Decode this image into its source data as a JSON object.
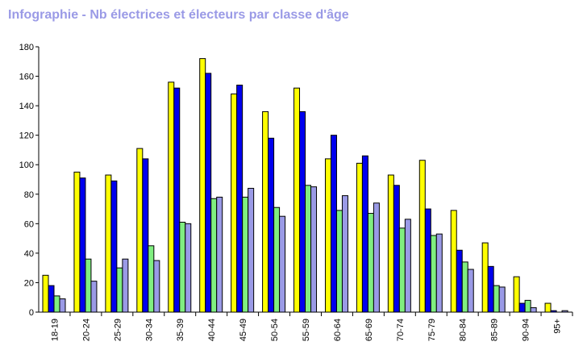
{
  "chart_data": {
    "type": "bar",
    "title": "Infographie - Nb électrices et électeurs par classe d'âge",
    "categories": [
      "18-19",
      "20-24",
      "25-29",
      "30-34",
      "35-39",
      "40-44",
      "45-49",
      "50-54",
      "55-59",
      "60-64",
      "65-69",
      "70-74",
      "75-79",
      "80-84",
      "85-89",
      "90-94",
      "95+"
    ],
    "series": [
      {
        "color": "#ffff00",
        "values": [
          25,
          95,
          93,
          111,
          156,
          172,
          148,
          136,
          152,
          104,
          101,
          93,
          103,
          69,
          47,
          24,
          6
        ]
      },
      {
        "color": "#0000ee",
        "values": [
          18,
          91,
          89,
          104,
          152,
          162,
          154,
          118,
          136,
          120,
          106,
          86,
          70,
          42,
          31,
          6,
          1
        ]
      },
      {
        "color": "#80ee80",
        "values": [
          11,
          36,
          30,
          45,
          61,
          77,
          78,
          71,
          86,
          69,
          67,
          57,
          52,
          34,
          18,
          8,
          0
        ]
      },
      {
        "color": "#9a9ae6",
        "values": [
          9,
          21,
          36,
          35,
          60,
          78,
          84,
          65,
          85,
          79,
          74,
          63,
          53,
          29,
          17,
          3,
          1
        ]
      }
    ],
    "yticks": [
      0,
      20,
      40,
      60,
      80,
      100,
      120,
      140,
      160,
      180
    ],
    "ylim": [
      0,
      180
    ],
    "grid": false,
    "legend": "none"
  }
}
